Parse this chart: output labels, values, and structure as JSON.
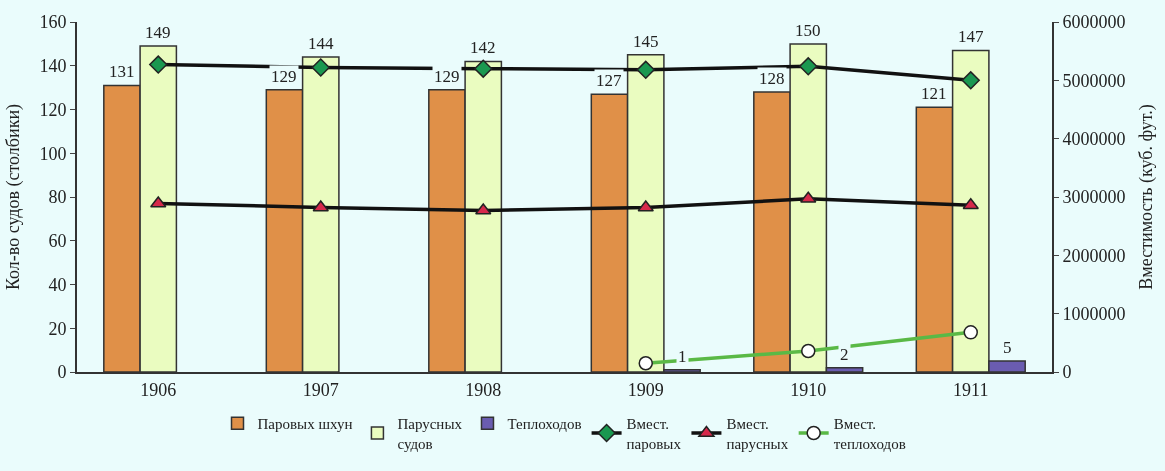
{
  "chart_data": {
    "type": "bar",
    "categories": [
      "1906",
      "1907",
      "1908",
      "1909",
      "1910",
      "1911"
    ],
    "ylabel": "Кол-во судов (столбики)",
    "y2label": "Вместимость (куб. фут.)",
    "ylim": [
      0,
      160
    ],
    "yticks": [
      0,
      20,
      40,
      60,
      80,
      100,
      120,
      140,
      160
    ],
    "y2lim": [
      0,
      6000000
    ],
    "y2ticks": [
      0,
      1000000,
      2000000,
      3000000,
      4000000,
      5000000,
      6000000
    ],
    "grid": false,
    "legend": "bottom",
    "series": [
      {
        "name": "Паровых шхун",
        "color": "#e09048",
        "values": [
          131,
          129,
          129,
          127,
          128,
          121
        ],
        "value_labels": [
          "131",
          "129",
          "129",
          "127",
          "128",
          "121"
        ]
      },
      {
        "name": "Парусных\nсудов",
        "color": "#eafcc0",
        "values": [
          149,
          144,
          142,
          145,
          150,
          147
        ],
        "value_labels": [
          "149",
          "144",
          "142",
          "145",
          "150",
          "147"
        ]
      },
      {
        "name": "Теплоходов",
        "color": "#6a5cb0",
        "values": [
          null,
          null,
          null,
          1,
          2,
          5
        ],
        "value_labels": [
          null,
          null,
          null,
          "1",
          "2",
          "5"
        ]
      },
      {
        "name": "Вмест.\nпаровых",
        "type": "line",
        "axis": "y2",
        "marker": "diamond",
        "color": "#1a9850",
        "values": [
          5270000,
          5220000,
          5200000,
          5180000,
          5240000,
          5000000
        ]
      },
      {
        "name": "Вмест.\nпарусных",
        "type": "line",
        "axis": "y2",
        "marker": "triangle",
        "color": "#d6294b",
        "values": [
          2890000,
          2820000,
          2770000,
          2820000,
          2970000,
          2860000
        ]
      },
      {
        "name": "Вмест.\nтеплоходов",
        "type": "line",
        "axis": "y2",
        "marker": "circle",
        "color": "#5ab946",
        "values": [
          null,
          null,
          null,
          150000,
          360000,
          680000
        ]
      }
    ]
  }
}
